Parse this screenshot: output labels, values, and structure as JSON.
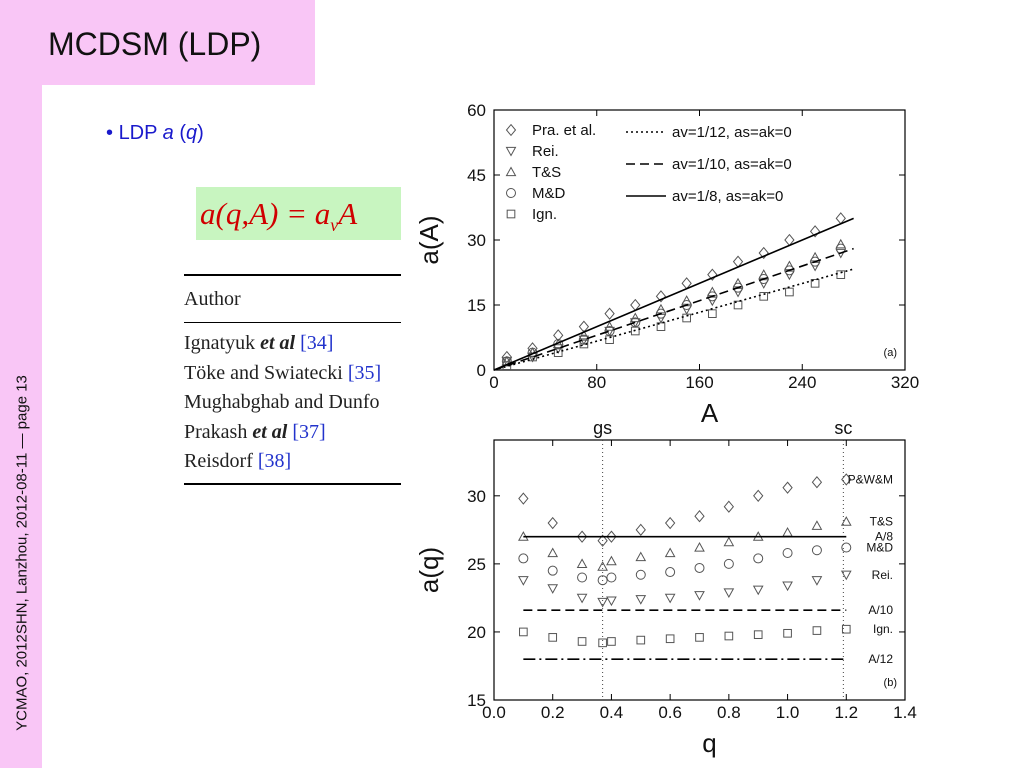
{
  "slide": {
    "title": "MCDSM (LDP)",
    "bullet": [
      "LDP ",
      "a",
      " (",
      "q",
      ")"
    ],
    "formula": [
      "a(q,A) = a",
      "v",
      "A"
    ],
    "footer": "YCMAO, 2012SHN, Lanzhou, 2012-08-11 — page 13"
  },
  "table": {
    "header": "Author",
    "rows": [
      {
        "author": "Ignatyuk ",
        "etal": "et al",
        "ref": " [34]"
      },
      {
        "author": "Töke and Swiatecki",
        "etal": "",
        "ref": " [35]"
      },
      {
        "author": "Mughabghab and Dunfo",
        "etal": "",
        "ref": ""
      },
      {
        "author": "Prakash ",
        "etal": "et al",
        "ref": " [37]"
      },
      {
        "author": "Reisdorf",
        "etal": "",
        "ref": " [38]"
      }
    ]
  },
  "chart_data": [
    {
      "type": "scatter",
      "xlabel": "A",
      "ylabel": "a(A)",
      "panel": "(a)",
      "xlim": [
        0,
        320
      ],
      "xticks": [
        0,
        80,
        160,
        240,
        320
      ],
      "ylim": [
        0,
        60
      ],
      "yticks": [
        0,
        15,
        30,
        45,
        60
      ],
      "legend": "upper-left",
      "x": [
        10,
        30,
        50,
        70,
        90,
        110,
        130,
        150,
        170,
        190,
        210,
        230,
        250,
        270
      ],
      "series": [
        {
          "name": "Pra. et al.",
          "marker": "diamond",
          "color": "#555555",
          "values": [
            3,
            5,
            8,
            10,
            13,
            15,
            17,
            20,
            22,
            25,
            27,
            30,
            32,
            35
          ]
        },
        {
          "name": "Rei.",
          "marker": "triangle-down",
          "color": "#555555",
          "values": [
            2,
            3,
            5,
            7,
            9,
            11,
            12,
            14,
            16,
            18,
            20,
            22,
            24,
            27
          ]
        },
        {
          "name": "T&S",
          "marker": "triangle-up",
          "color": "#555555",
          "values": [
            2,
            4,
            6,
            8,
            10,
            12,
            14,
            16,
            18,
            20,
            22,
            24,
            26,
            29
          ]
        },
        {
          "name": "M&D",
          "marker": "circle",
          "color": "#555555",
          "values": [
            2,
            4,
            6,
            7,
            9,
            11,
            13,
            15,
            17,
            19,
            21,
            23,
            25,
            28
          ]
        },
        {
          "name": "Ign.",
          "marker": "square",
          "color": "#555555",
          "values": [
            1,
            3,
            4,
            6,
            7,
            9,
            10,
            12,
            13,
            15,
            17,
            18,
            20,
            22
          ]
        },
        {
          "name": "av=1/12, as=ak=0",
          "line": "dotted",
          "color": "#000000",
          "x": [
            0,
            280
          ],
          "values": [
            0,
            23.3
          ]
        },
        {
          "name": "av=1/10, as=ak=0",
          "line": "dashed",
          "color": "#000000",
          "x": [
            0,
            280
          ],
          "values": [
            0,
            28
          ]
        },
        {
          "name": "av=1/8, as=ak=0",
          "line": "solid",
          "color": "#000000",
          "x": [
            0,
            280
          ],
          "values": [
            0,
            35
          ]
        }
      ]
    },
    {
      "type": "scatter",
      "xlabel": "q",
      "ylabel": "a(q)",
      "panel": "(b)",
      "xlim": [
        0,
        1.4
      ],
      "xticks": [
        {
          "value": 0,
          "label": "0.0"
        },
        0.2,
        0.4,
        0.6,
        0.8,
        {
          "value": 1,
          "label": "1.0"
        },
        1.2,
        1.4
      ],
      "ylim": [
        15,
        34.1
      ],
      "yticks": [
        15,
        20,
        25,
        30
      ],
      "legend": "end-labels",
      "annotations": [
        {
          "text": "gs",
          "x": 0.37
        },
        {
          "text": "sc",
          "x": 1.19
        }
      ],
      "x": [
        0.1,
        0.2,
        0.3,
        0.37,
        0.4,
        0.5,
        0.6,
        0.7,
        0.8,
        0.9,
        1.0,
        1.1,
        1.2
      ],
      "series": [
        {
          "name": "P&W&M",
          "marker": "diamond",
          "color": "#555555",
          "values": [
            29.8,
            28,
            27,
            26.7,
            27,
            27.5,
            28,
            28.5,
            29.2,
            30,
            30.6,
            31,
            31.2
          ]
        },
        {
          "name": "T&S",
          "marker": "triangle-up",
          "color": "#555555",
          "values": [
            27,
            25.8,
            25,
            24.8,
            25.2,
            25.5,
            25.8,
            26.2,
            26.6,
            27,
            27.3,
            27.8,
            28.1
          ]
        },
        {
          "name": "M&D",
          "marker": "circle",
          "color": "#555555",
          "values": [
            25.4,
            24.5,
            24,
            23.8,
            24,
            24.2,
            24.4,
            24.7,
            25,
            25.4,
            25.8,
            26,
            26.2
          ]
        },
        {
          "name": "Rei.",
          "marker": "triangle-down",
          "color": "#555555",
          "values": [
            23.8,
            23.2,
            22.5,
            22.2,
            22.3,
            22.4,
            22.5,
            22.7,
            22.9,
            23.1,
            23.4,
            23.8,
            24.2
          ]
        },
        {
          "name": "Ign.",
          "marker": "square",
          "color": "#555555",
          "values": [
            20,
            19.6,
            19.3,
            19.2,
            19.3,
            19.4,
            19.5,
            19.6,
            19.7,
            19.8,
            19.9,
            20.1,
            20.2
          ]
        },
        {
          "name": "A/8",
          "line": "solid",
          "color": "#000000",
          "x": [
            0.1,
            1.2
          ],
          "values": [
            27,
            27
          ]
        },
        {
          "name": "A/10",
          "line": "dashed",
          "color": "#000000",
          "x": [
            0.1,
            1.2
          ],
          "values": [
            21.6,
            21.6
          ]
        },
        {
          "name": "A/12",
          "line": "dashdot",
          "color": "#000000",
          "x": [
            0.1,
            1.2
          ],
          "values": [
            18,
            18
          ]
        }
      ]
    }
  ]
}
